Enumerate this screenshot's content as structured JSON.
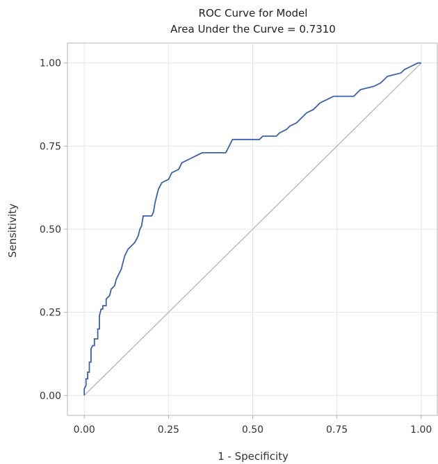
{
  "chart_data": {
    "type": "line",
    "title": "ROC Curve for Model",
    "subtitle": "Area Under the Curve = 0.7310",
    "xlabel": "1 - Specificity",
    "ylabel": "Sensitivity",
    "xlim": [
      -0.05,
      1.05
    ],
    "ylim": [
      -0.06,
      1.06
    ],
    "xticks": [
      "0.00",
      "0.25",
      "0.50",
      "0.75",
      "1.00"
    ],
    "yticks": [
      "0.00",
      "0.25",
      "0.50",
      "0.75",
      "1.00"
    ],
    "grid": true,
    "legend": "none",
    "colors": {
      "curve": "#3a5fb0",
      "diagonal": "#b4b4b4",
      "grid": "#e6e6e6",
      "frame": "#b4b4b4"
    },
    "series": [
      {
        "values": [
          [
            0.0,
            0.0
          ],
          [
            0.0,
            0.02
          ],
          [
            0.005,
            0.03
          ],
          [
            0.005,
            0.05
          ],
          [
            0.01,
            0.05
          ],
          [
            0.01,
            0.07
          ],
          [
            0.015,
            0.07
          ],
          [
            0.015,
            0.1
          ],
          [
            0.02,
            0.1
          ],
          [
            0.02,
            0.14
          ],
          [
            0.025,
            0.15
          ],
          [
            0.03,
            0.15
          ],
          [
            0.03,
            0.17
          ],
          [
            0.04,
            0.17
          ],
          [
            0.04,
            0.2
          ],
          [
            0.045,
            0.2
          ],
          [
            0.045,
            0.24
          ],
          [
            0.05,
            0.26
          ],
          [
            0.055,
            0.26
          ],
          [
            0.055,
            0.27
          ],
          [
            0.065,
            0.27
          ],
          [
            0.065,
            0.29
          ],
          [
            0.075,
            0.3
          ],
          [
            0.08,
            0.32
          ],
          [
            0.09,
            0.33
          ],
          [
            0.095,
            0.35
          ],
          [
            0.1,
            0.36
          ],
          [
            0.11,
            0.38
          ],
          [
            0.115,
            0.4
          ],
          [
            0.12,
            0.42
          ],
          [
            0.125,
            0.43
          ],
          [
            0.13,
            0.44
          ],
          [
            0.14,
            0.45
          ],
          [
            0.15,
            0.46
          ],
          [
            0.16,
            0.48
          ],
          [
            0.165,
            0.5
          ],
          [
            0.17,
            0.51
          ],
          [
            0.175,
            0.54
          ],
          [
            0.2,
            0.54
          ],
          [
            0.205,
            0.55
          ],
          [
            0.21,
            0.58
          ],
          [
            0.22,
            0.62
          ],
          [
            0.23,
            0.64
          ],
          [
            0.25,
            0.65
          ],
          [
            0.26,
            0.67
          ],
          [
            0.28,
            0.68
          ],
          [
            0.29,
            0.7
          ],
          [
            0.31,
            0.71
          ],
          [
            0.33,
            0.72
          ],
          [
            0.35,
            0.73
          ],
          [
            0.42,
            0.73
          ],
          [
            0.43,
            0.75
          ],
          [
            0.44,
            0.77
          ],
          [
            0.52,
            0.77
          ],
          [
            0.53,
            0.78
          ],
          [
            0.57,
            0.78
          ],
          [
            0.58,
            0.79
          ],
          [
            0.6,
            0.8
          ],
          [
            0.61,
            0.81
          ],
          [
            0.63,
            0.82
          ],
          [
            0.64,
            0.83
          ],
          [
            0.66,
            0.85
          ],
          [
            0.68,
            0.86
          ],
          [
            0.7,
            0.88
          ],
          [
            0.72,
            0.89
          ],
          [
            0.74,
            0.9
          ],
          [
            0.8,
            0.9
          ],
          [
            0.81,
            0.91
          ],
          [
            0.82,
            0.92
          ],
          [
            0.86,
            0.93
          ],
          [
            0.88,
            0.94
          ],
          [
            0.9,
            0.96
          ],
          [
            0.94,
            0.97
          ],
          [
            0.95,
            0.98
          ],
          [
            0.97,
            0.99
          ],
          [
            0.99,
            1.0
          ],
          [
            1.0,
            1.0
          ]
        ]
      },
      {
        "values": [
          [
            0,
            0
          ],
          [
            1,
            1
          ]
        ]
      }
    ]
  }
}
